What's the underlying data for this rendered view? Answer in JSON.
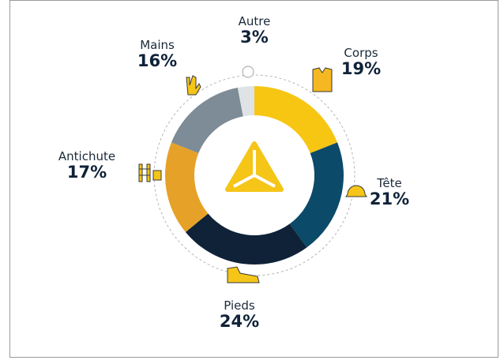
{
  "chart_data": {
    "type": "pie",
    "categories": [
      "Corps",
      "Tête",
      "Pieds",
      "Antichute",
      "Mains",
      "Autre"
    ],
    "values": [
      19,
      21,
      24,
      17,
      16,
      3
    ],
    "value_labels": [
      "19%",
      "21%",
      "24%",
      "17%",
      "16%",
      "3%"
    ],
    "colors": [
      "#f7c613",
      "#0c4a6a",
      "#0f2238",
      "#e6a228",
      "#7d8c96",
      "#dfe3e5"
    ]
  }
}
